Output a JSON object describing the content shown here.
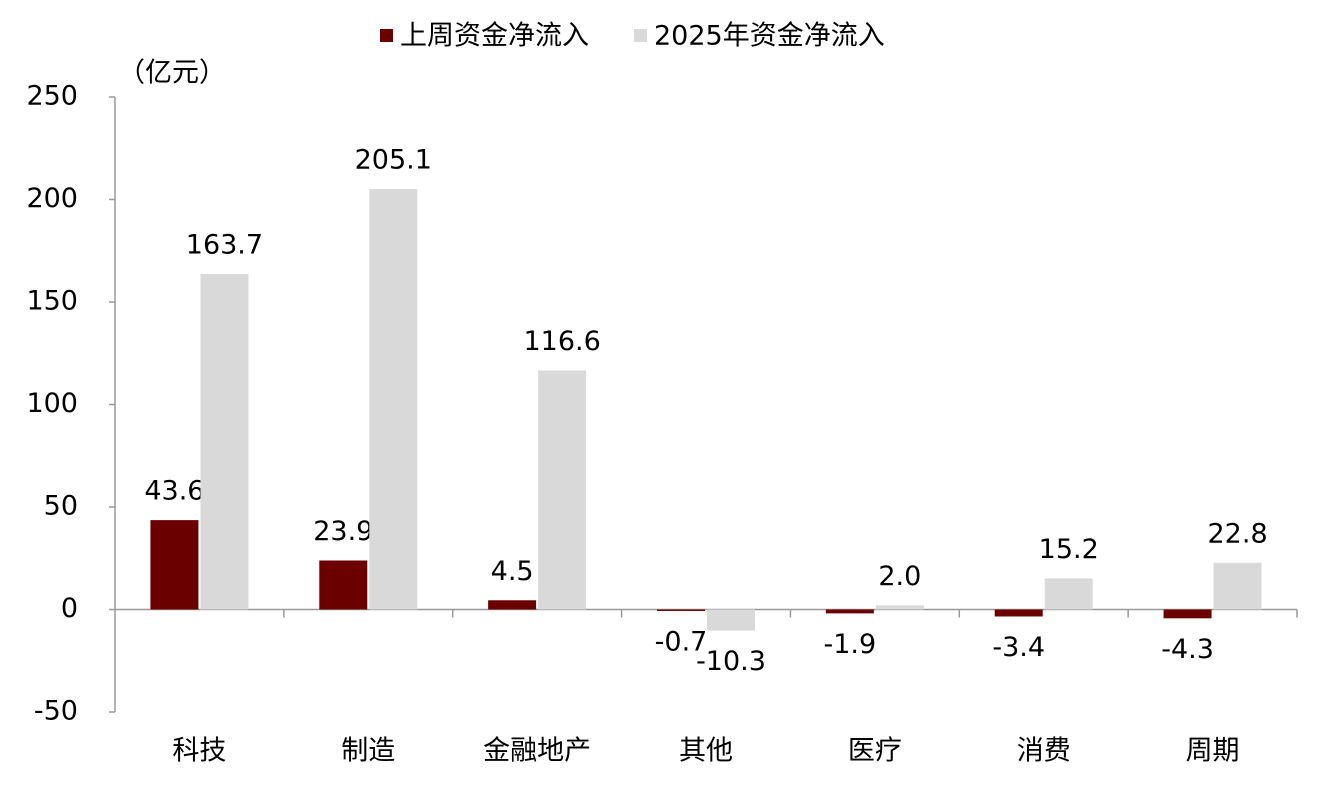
{
  "chart_data": {
    "type": "bar",
    "y_label": "（亿元）",
    "categories": [
      "科技",
      "制造",
      "金融地产",
      "其他",
      "医疗",
      "消费",
      "周期"
    ],
    "series": [
      {
        "name": "上周资金净流入",
        "color": "#6b0000",
        "values": [
          43.6,
          23.9,
          4.5,
          -0.7,
          -1.9,
          -3.4,
          -4.3
        ]
      },
      {
        "name": "2025年资金净流入",
        "color": "#d9d9d9",
        "values": [
          163.7,
          205.1,
          116.6,
          -10.3,
          2.0,
          15.2,
          22.8
        ],
        "value_labels": [
          "163.7",
          "205.1",
          "116.6",
          "-10.3",
          "2.0",
          "15.2",
          "22.8"
        ]
      }
    ],
    "ylim": [
      -50,
      250
    ],
    "yticks": [
      -50,
      0,
      50,
      100,
      150,
      200,
      250
    ],
    "legend": "top"
  }
}
